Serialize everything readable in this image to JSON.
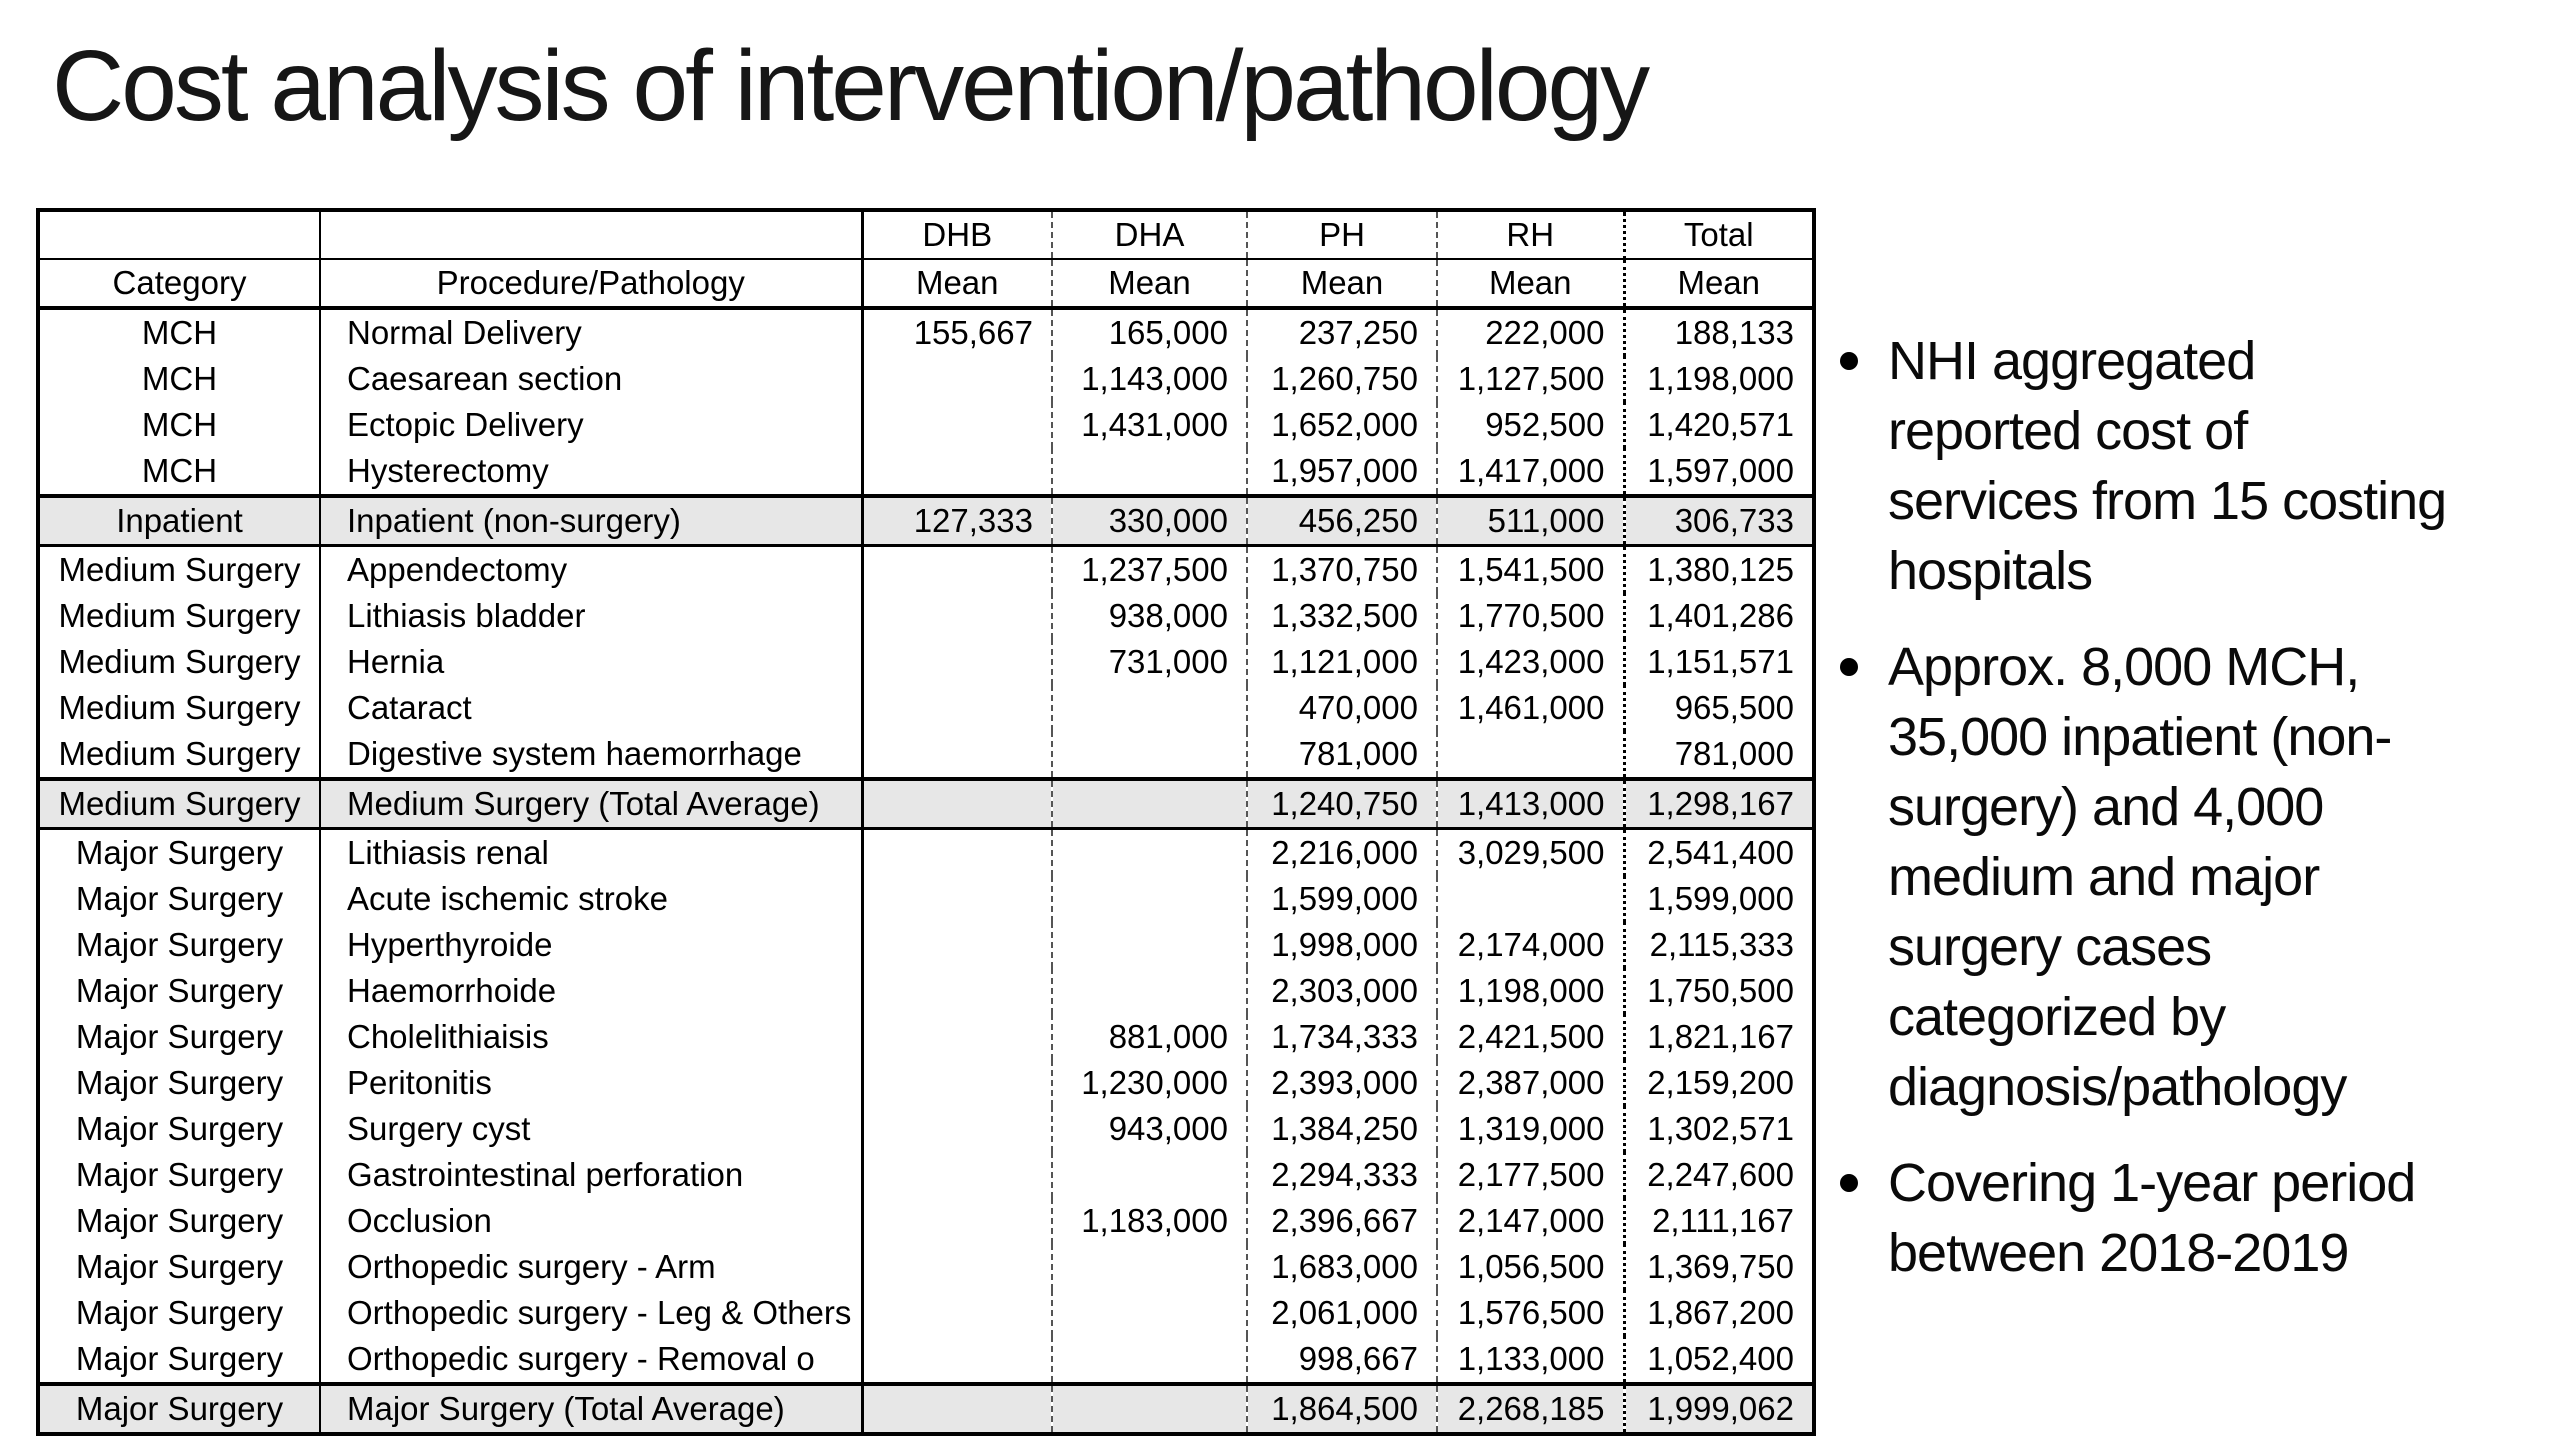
{
  "title": "Cost analysis of intervention/pathology",
  "table": {
    "mean_label": "Mean",
    "col_groups": [
      "DHB",
      "DHA",
      "PH",
      "RH",
      "Total"
    ],
    "header": {
      "category": "Category",
      "procedure": "Procedure/Pathology"
    },
    "rows": [
      {
        "category": "MCH",
        "procedure": "Normal Delivery",
        "dhb": "155,667",
        "dha": "165,000",
        "ph": "237,250",
        "rh": "222,000",
        "total": "188,133",
        "shaded": false
      },
      {
        "category": "MCH",
        "procedure": "Caesarean section",
        "dhb": "",
        "dha": "1,143,000",
        "ph": "1,260,750",
        "rh": "1,127,500",
        "total": "1,198,000",
        "shaded": false
      },
      {
        "category": "MCH",
        "procedure": "Ectopic Delivery",
        "dhb": "",
        "dha": "1,431,000",
        "ph": "1,652,000",
        "rh": "952,500",
        "total": "1,420,571",
        "shaded": false
      },
      {
        "category": "MCH",
        "procedure": "Hysterectomy",
        "dhb": "",
        "dha": "",
        "ph": "1,957,000",
        "rh": "1,417,000",
        "total": "1,597,000",
        "shaded": false
      },
      {
        "category": "Inpatient",
        "procedure": "Inpatient (non-surgery)",
        "dhb": "127,333",
        "dha": "330,000",
        "ph": "456,250",
        "rh": "511,000",
        "total": "306,733",
        "shaded": true
      },
      {
        "category": "Medium Surgery",
        "procedure": "Appendectomy",
        "dhb": "",
        "dha": "1,237,500",
        "ph": "1,370,750",
        "rh": "1,541,500",
        "total": "1,380,125",
        "shaded": false
      },
      {
        "category": "Medium Surgery",
        "procedure": "Lithiasis bladder",
        "dhb": "",
        "dha": "938,000",
        "ph": "1,332,500",
        "rh": "1,770,500",
        "total": "1,401,286",
        "shaded": false
      },
      {
        "category": "Medium Surgery",
        "procedure": "Hernia",
        "dhb": "",
        "dha": "731,000",
        "ph": "1,121,000",
        "rh": "1,423,000",
        "total": "1,151,571",
        "shaded": false
      },
      {
        "category": "Medium Surgery",
        "procedure": "Cataract",
        "dhb": "",
        "dha": "",
        "ph": "470,000",
        "rh": "1,461,000",
        "total": "965,500",
        "shaded": false
      },
      {
        "category": "Medium Surgery",
        "procedure": "Digestive system haemorrhage",
        "dhb": "",
        "dha": "",
        "ph": "781,000",
        "rh": "",
        "total": "781,000",
        "shaded": false
      },
      {
        "category": "Medium Surgery",
        "procedure": "Medium Surgery (Total Average)",
        "dhb": "",
        "dha": "",
        "ph": "1,240,750",
        "rh": "1,413,000",
        "total": "1,298,167",
        "shaded": true
      },
      {
        "category": "Major Surgery",
        "procedure": "Lithiasis renal",
        "dhb": "",
        "dha": "",
        "ph": "2,216,000",
        "rh": "3,029,500",
        "total": "2,541,400",
        "shaded": false
      },
      {
        "category": "Major Surgery",
        "procedure": "Acute ischemic stroke",
        "dhb": "",
        "dha": "",
        "ph": "1,599,000",
        "rh": "",
        "total": "1,599,000",
        "shaded": false
      },
      {
        "category": "Major Surgery",
        "procedure": "Hyperthyroide",
        "dhb": "",
        "dha": "",
        "ph": "1,998,000",
        "rh": "2,174,000",
        "total": "2,115,333",
        "shaded": false
      },
      {
        "category": "Major Surgery",
        "procedure": "Haemorrhoide",
        "dhb": "",
        "dha": "",
        "ph": "2,303,000",
        "rh": "1,198,000",
        "total": "1,750,500",
        "shaded": false
      },
      {
        "category": "Major Surgery",
        "procedure": "Cholelithiaisis",
        "dhb": "",
        "dha": "881,000",
        "ph": "1,734,333",
        "rh": "2,421,500",
        "total": "1,821,167",
        "shaded": false
      },
      {
        "category": "Major Surgery",
        "procedure": "Peritonitis",
        "dhb": "",
        "dha": "1,230,000",
        "ph": "2,393,000",
        "rh": "2,387,000",
        "total": "2,159,200",
        "shaded": false
      },
      {
        "category": "Major Surgery",
        "procedure": "Surgery cyst",
        "dhb": "",
        "dha": "943,000",
        "ph": "1,384,250",
        "rh": "1,319,000",
        "total": "1,302,571",
        "shaded": false
      },
      {
        "category": "Major Surgery",
        "procedure": "Gastrointestinal perforation",
        "dhb": "",
        "dha": "",
        "ph": "2,294,333",
        "rh": "2,177,500",
        "total": "2,247,600",
        "shaded": false
      },
      {
        "category": "Major Surgery",
        "procedure": "Occlusion",
        "dhb": "",
        "dha": "1,183,000",
        "ph": "2,396,667",
        "rh": "2,147,000",
        "total": "2,111,167",
        "shaded": false
      },
      {
        "category": "Major Surgery",
        "procedure": "Orthopedic surgery - Arm",
        "dhb": "",
        "dha": "",
        "ph": "1,683,000",
        "rh": "1,056,500",
        "total": "1,369,750",
        "shaded": false
      },
      {
        "category": "Major Surgery",
        "procedure": "Orthopedic surgery - Leg & Others",
        "dhb": "",
        "dha": "",
        "ph": "2,061,000",
        "rh": "1,576,500",
        "total": "1,867,200",
        "shaded": false
      },
      {
        "category": "Major Surgery",
        "procedure": "Orthopedic surgery - Removal o",
        "dhb": "",
        "dha": "",
        "ph": "998,667",
        "rh": "1,133,000",
        "total": "1,052,400",
        "shaded": false
      },
      {
        "category": "Major Surgery",
        "procedure": "Major Surgery (Total Average)",
        "dhb": "",
        "dha": "",
        "ph": "1,864,500",
        "rh": "2,268,185",
        "total": "1,999,062",
        "shaded": true
      }
    ]
  },
  "bullets": [
    {
      "lines": [
        "NHI aggregated",
        "reported cost of",
        "services from 15 costing",
        "hospitals"
      ]
    },
    {
      "lines": [
        "Approx. 8,000 MCH,",
        "35,000 inpatient (non-",
        "surgery) and 4,000",
        "medium and major",
        "surgery cases",
        "categorized by",
        "diagnosis/pathology"
      ]
    },
    {
      "lines": [
        "Covering 1-year period",
        "between 2018-2019"
      ]
    }
  ]
}
